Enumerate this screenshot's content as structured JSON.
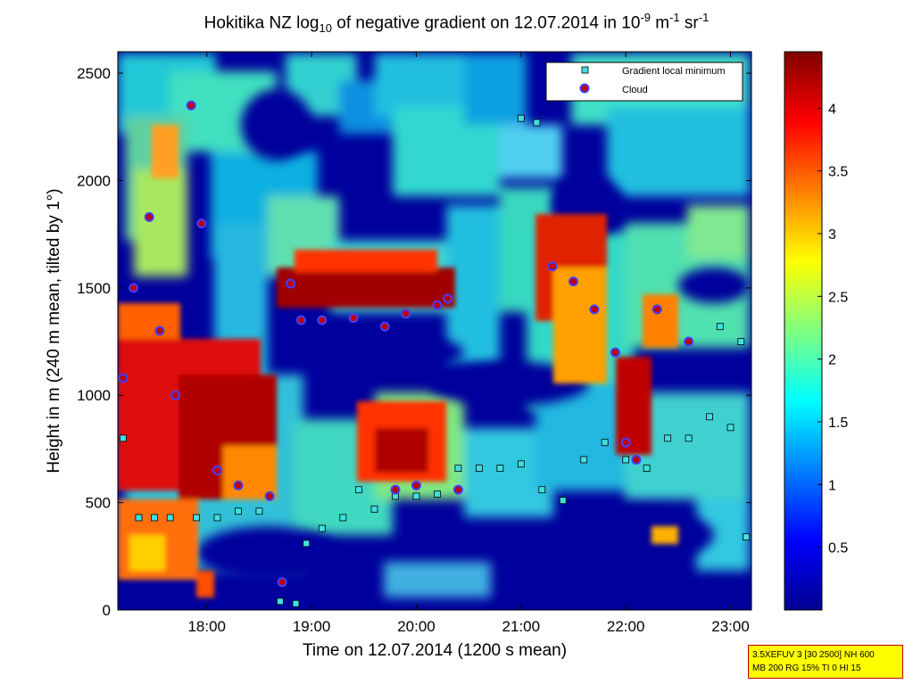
{
  "chart_data": {
    "type": "heatmap",
    "title": {
      "prefix": "Hokitika NZ log",
      "sub": "10",
      "middle": " of negative gradient on 12.07.2014 in 10",
      "sup1": "-9",
      "unit1": " m",
      "sup2": "-1",
      "unit2": " sr",
      "sup3": "-1"
    },
    "xlabel": "Time on 12.07.2014 (1200 s mean)",
    "ylabel": "Height in m (240 m mean, tilted by 1°)",
    "x_ticks": [
      "18:00",
      "19:00",
      "20:00",
      "21:00",
      "22:00",
      "23:00"
    ],
    "x_tick_hours": [
      18,
      19,
      20,
      21,
      22,
      23
    ],
    "xlim_hours": [
      17.15,
      23.2
    ],
    "y_ticks": [
      0,
      500,
      1000,
      1500,
      2000,
      2500
    ],
    "ylim": [
      0,
      2600
    ],
    "colorbar": {
      "ticks": [
        "0.5",
        "1",
        "1.5",
        "2",
        "2.5",
        "3",
        "3.5",
        "4"
      ],
      "tick_values": [
        0.5,
        1,
        1.5,
        2,
        2.5,
        3,
        3.5,
        4
      ],
      "range": [
        0,
        4.45
      ],
      "colormap": "jet"
    },
    "legend": {
      "position": "top-right",
      "entries": [
        {
          "label": "Gradient local minimum",
          "marker": "square",
          "color": "#40e0e0"
        },
        {
          "label": "Cloud",
          "marker": "circle",
          "color": "#c00000",
          "edge": "#4040ff"
        }
      ]
    },
    "series": [
      {
        "name": "Gradient local minimum",
        "points": [
          [
            17.2,
            800
          ],
          [
            17.35,
            430
          ],
          [
            17.5,
            430
          ],
          [
            17.65,
            430
          ],
          [
            17.9,
            430
          ],
          [
            18.1,
            430
          ],
          [
            18.3,
            460
          ],
          [
            18.5,
            460
          ],
          [
            18.7,
            40
          ],
          [
            18.85,
            30
          ],
          [
            18.95,
            310
          ],
          [
            19.1,
            380
          ],
          [
            19.3,
            430
          ],
          [
            19.45,
            560
          ],
          [
            19.6,
            470
          ],
          [
            19.8,
            530
          ],
          [
            20.0,
            530
          ],
          [
            20.2,
            540
          ],
          [
            20.4,
            660
          ],
          [
            20.6,
            660
          ],
          [
            20.8,
            660
          ],
          [
            21.0,
            680
          ],
          [
            21.2,
            560
          ],
          [
            21.4,
            510
          ],
          [
            21.6,
            700
          ],
          [
            21.8,
            780
          ],
          [
            22.0,
            700
          ],
          [
            22.2,
            660
          ],
          [
            22.4,
            800
          ],
          [
            22.6,
            800
          ],
          [
            22.8,
            900
          ],
          [
            23.0,
            850
          ],
          [
            23.15,
            340
          ],
          [
            21.0,
            2290
          ],
          [
            21.15,
            2270
          ],
          [
            22.9,
            1320
          ],
          [
            23.1,
            1250
          ]
        ]
      },
      {
        "name": "Cloud",
        "points": [
          [
            17.2,
            1080
          ],
          [
            17.3,
            1500
          ],
          [
            17.45,
            1830
          ],
          [
            17.55,
            1300
          ],
          [
            17.7,
            1000
          ],
          [
            17.85,
            2350
          ],
          [
            17.95,
            1800
          ],
          [
            18.1,
            650
          ],
          [
            18.3,
            580
          ],
          [
            18.6,
            530
          ],
          [
            18.72,
            130
          ],
          [
            18.8,
            1520
          ],
          [
            18.9,
            1350
          ],
          [
            19.1,
            1350
          ],
          [
            19.4,
            1360
          ],
          [
            19.7,
            1320
          ],
          [
            19.9,
            1380
          ],
          [
            20.2,
            1420
          ],
          [
            20.3,
            1450
          ],
          [
            19.8,
            560
          ],
          [
            20.0,
            580
          ],
          [
            20.4,
            560
          ],
          [
            21.3,
            1600
          ],
          [
            21.5,
            1530
          ],
          [
            21.7,
            1400
          ],
          [
            21.9,
            1200
          ],
          [
            22.0,
            780
          ],
          [
            22.1,
            700
          ],
          [
            22.3,
            1400
          ],
          [
            22.6,
            1250
          ]
        ]
      }
    ]
  }
}
